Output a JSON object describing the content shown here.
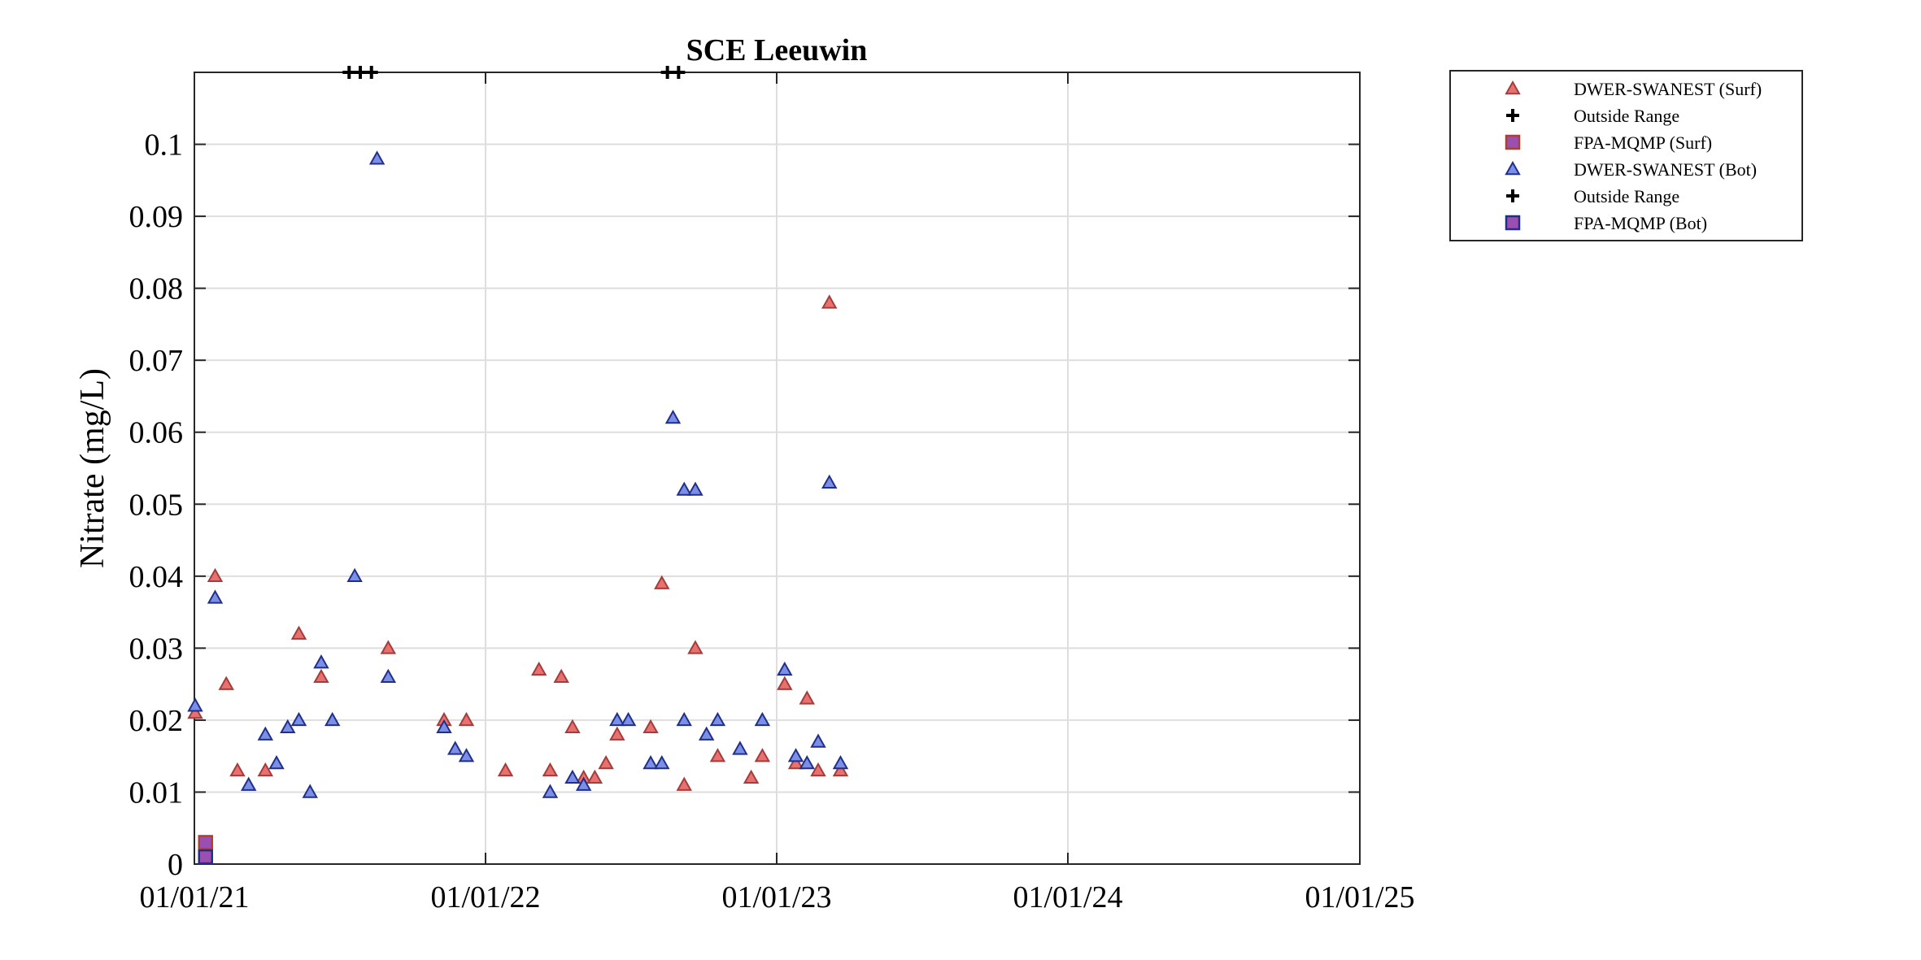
{
  "chart_data": {
    "type": "scatter",
    "title": "SCE Leeuwin",
    "xlabel": "",
    "ylabel": "Nitrate (mg/L)",
    "xlim": [
      "2021-01-01",
      "2025-01-01"
    ],
    "ylim": [
      0,
      0.11
    ],
    "xticks": [
      {
        "date": "2021-01-01",
        "label": "01/01/21"
      },
      {
        "date": "2022-01-01",
        "label": "01/01/22"
      },
      {
        "date": "2023-01-01",
        "label": "01/01/23"
      },
      {
        "date": "2024-01-01",
        "label": "01/01/24"
      },
      {
        "date": "2025-01-01",
        "label": "01/01/25"
      }
    ],
    "yticks": [
      {
        "value": 0,
        "label": "0"
      },
      {
        "value": 0.01,
        "label": "0.01"
      },
      {
        "value": 0.02,
        "label": "0.02"
      },
      {
        "value": 0.03,
        "label": "0.03"
      },
      {
        "value": 0.04,
        "label": "0.04"
      },
      {
        "value": 0.05,
        "label": "0.05"
      },
      {
        "value": 0.06,
        "label": "0.06"
      },
      {
        "value": 0.07,
        "label": "0.07"
      },
      {
        "value": 0.08,
        "label": "0.08"
      },
      {
        "value": 0.09,
        "label": "0.09"
      },
      {
        "value": 0.1,
        "label": "0.1"
      }
    ],
    "grid": true,
    "legend_position": "outside-top-right",
    "series": [
      {
        "name": "DWER-SWANEST (Surf)",
        "marker": "triangle",
        "color": "#e8716f",
        "edge_color": "#a33c3a",
        "points": [
          {
            "x": "2021-01-02",
            "y": 0.021
          },
          {
            "x": "2021-01-27",
            "y": 0.04
          },
          {
            "x": "2021-02-10",
            "y": 0.025
          },
          {
            "x": "2021-02-24",
            "y": 0.013
          },
          {
            "x": "2021-03-31",
            "y": 0.013
          },
          {
            "x": "2021-05-12",
            "y": 0.032
          },
          {
            "x": "2021-06-09",
            "y": 0.026
          },
          {
            "x": "2021-09-01",
            "y": 0.03
          },
          {
            "x": "2021-11-10",
            "y": 0.02
          },
          {
            "x": "2021-12-08",
            "y": 0.02
          },
          {
            "x": "2022-01-26",
            "y": 0.013
          },
          {
            "x": "2022-03-09",
            "y": 0.027
          },
          {
            "x": "2022-03-23",
            "y": 0.013
          },
          {
            "x": "2022-04-06",
            "y": 0.026
          },
          {
            "x": "2022-04-20",
            "y": 0.019
          },
          {
            "x": "2022-05-04",
            "y": 0.012
          },
          {
            "x": "2022-05-18",
            "y": 0.012
          },
          {
            "x": "2022-06-01",
            "y": 0.014
          },
          {
            "x": "2022-06-15",
            "y": 0.018
          },
          {
            "x": "2022-07-27",
            "y": 0.019
          },
          {
            "x": "2022-08-10",
            "y": 0.039
          },
          {
            "x": "2022-09-07",
            "y": 0.011
          },
          {
            "x": "2022-09-21",
            "y": 0.03
          },
          {
            "x": "2022-10-19",
            "y": 0.015
          },
          {
            "x": "2022-11-30",
            "y": 0.012
          },
          {
            "x": "2022-12-14",
            "y": 0.015
          },
          {
            "x": "2023-01-11",
            "y": 0.025
          },
          {
            "x": "2023-01-25",
            "y": 0.014
          },
          {
            "x": "2023-02-08",
            "y": 0.023
          },
          {
            "x": "2023-02-22",
            "y": 0.013
          },
          {
            "x": "2023-03-08",
            "y": 0.078
          },
          {
            "x": "2023-03-22",
            "y": 0.013
          }
        ]
      },
      {
        "name": "Outside Range",
        "marker": "plus",
        "color": "#000000",
        "points": [
          {
            "x": "2021-07-14",
            "y": 0.11
          },
          {
            "x": "2021-07-28",
            "y": 0.11
          },
          {
            "x": "2021-08-11",
            "y": 0.11
          },
          {
            "x": "2022-08-17",
            "y": 0.11
          },
          {
            "x": "2022-08-31",
            "y": 0.11
          }
        ]
      },
      {
        "name": "FPA-MQMP (Surf)",
        "marker": "square",
        "color": "#9b4fb0",
        "edge_color": "#b0402e",
        "points": [
          {
            "x": "2021-01-15",
            "y": 0.003
          }
        ]
      },
      {
        "name": "DWER-SWANEST (Bot)",
        "marker": "triangle",
        "color": "#7b8fe6",
        "edge_color": "#1f2f8a",
        "points": [
          {
            "x": "2021-01-02",
            "y": 0.022
          },
          {
            "x": "2021-01-27",
            "y": 0.037
          },
          {
            "x": "2021-03-10",
            "y": 0.011
          },
          {
            "x": "2021-03-31",
            "y": 0.018
          },
          {
            "x": "2021-04-14",
            "y": 0.014
          },
          {
            "x": "2021-04-28",
            "y": 0.019
          },
          {
            "x": "2021-05-12",
            "y": 0.02
          },
          {
            "x": "2021-05-26",
            "y": 0.01
          },
          {
            "x": "2021-06-09",
            "y": 0.028
          },
          {
            "x": "2021-06-23",
            "y": 0.02
          },
          {
            "x": "2021-07-21",
            "y": 0.04
          },
          {
            "x": "2021-08-18",
            "y": 0.098
          },
          {
            "x": "2021-09-01",
            "y": 0.026
          },
          {
            "x": "2021-11-10",
            "y": 0.019
          },
          {
            "x": "2021-11-24",
            "y": 0.016
          },
          {
            "x": "2021-12-08",
            "y": 0.015
          },
          {
            "x": "2022-03-23",
            "y": 0.01
          },
          {
            "x": "2022-04-20",
            "y": 0.012
          },
          {
            "x": "2022-05-04",
            "y": 0.011
          },
          {
            "x": "2022-06-15",
            "y": 0.02
          },
          {
            "x": "2022-06-29",
            "y": 0.02
          },
          {
            "x": "2022-07-27",
            "y": 0.014
          },
          {
            "x": "2022-08-10",
            "y": 0.014
          },
          {
            "x": "2022-08-24",
            "y": 0.062
          },
          {
            "x": "2022-09-07",
            "y": 0.052
          },
          {
            "x": "2022-09-07",
            "y": 0.02
          },
          {
            "x": "2022-09-21",
            "y": 0.052
          },
          {
            "x": "2022-10-05",
            "y": 0.018
          },
          {
            "x": "2022-10-19",
            "y": 0.02
          },
          {
            "x": "2022-11-16",
            "y": 0.016
          },
          {
            "x": "2022-12-14",
            "y": 0.02
          },
          {
            "x": "2023-01-11",
            "y": 0.027
          },
          {
            "x": "2023-01-25",
            "y": 0.015
          },
          {
            "x": "2023-02-08",
            "y": 0.014
          },
          {
            "x": "2023-02-22",
            "y": 0.017
          },
          {
            "x": "2023-03-08",
            "y": 0.053
          },
          {
            "x": "2023-03-22",
            "y": 0.014
          }
        ]
      },
      {
        "name": "Outside Range",
        "marker": "plus",
        "color": "#000000",
        "points": []
      },
      {
        "name": "FPA-MQMP (Bot)",
        "marker": "square",
        "color": "#9b4fb0",
        "edge_color": "#1f2f8a",
        "points": [
          {
            "x": "2021-01-15",
            "y": 0.001
          }
        ]
      }
    ]
  }
}
